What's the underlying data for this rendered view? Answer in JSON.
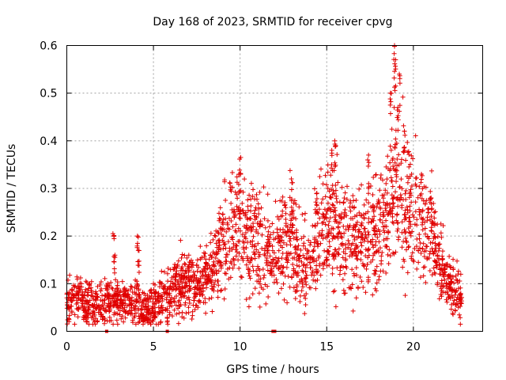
{
  "chart_data": {
    "type": "scatter",
    "title": "Day 168 of 2023, SRMTID for receiver cpvg",
    "xlabel": "GPS time / hours",
    "ylabel": "SRMTID / TECUs",
    "xlim": [
      0,
      24
    ],
    "ylim": [
      0,
      0.6
    ],
    "xticks": [
      "0",
      "5",
      "10",
      "15",
      "20"
    ],
    "yticks": [
      "0",
      "0.1",
      "0.2",
      "0.3",
      "0.4",
      "0.5",
      "0.6"
    ],
    "xtick_values": [
      0,
      5,
      10,
      15,
      20
    ],
    "ytick_values": [
      0,
      0.1,
      0.2,
      0.3,
      0.4,
      0.5,
      0.6
    ],
    "grid": true,
    "marker": "plus",
    "color": "#e00000",
    "trend": [
      [
        0.0,
        0.065
      ],
      [
        0.5,
        0.07
      ],
      [
        1.0,
        0.06
      ],
      [
        1.5,
        0.06
      ],
      [
        2.0,
        0.06
      ],
      [
        2.5,
        0.06
      ],
      [
        3.0,
        0.06
      ],
      [
        3.5,
        0.06
      ],
      [
        4.0,
        0.06
      ],
      [
        4.5,
        0.045
      ],
      [
        5.0,
        0.055
      ],
      [
        5.5,
        0.07
      ],
      [
        6.0,
        0.08
      ],
      [
        6.5,
        0.1
      ],
      [
        7.0,
        0.1
      ],
      [
        7.5,
        0.095
      ],
      [
        8.0,
        0.11
      ],
      [
        8.5,
        0.14
      ],
      [
        9.0,
        0.19
      ],
      [
        9.5,
        0.22
      ],
      [
        10.0,
        0.22
      ],
      [
        10.5,
        0.2
      ],
      [
        11.0,
        0.19
      ],
      [
        11.5,
        0.17
      ],
      [
        12.0,
        0.17
      ],
      [
        12.5,
        0.18
      ],
      [
        13.0,
        0.19
      ],
      [
        13.5,
        0.14
      ],
      [
        14.0,
        0.14
      ],
      [
        14.5,
        0.2
      ],
      [
        15.0,
        0.22
      ],
      [
        15.5,
        0.23
      ],
      [
        16.0,
        0.2
      ],
      [
        16.5,
        0.19
      ],
      [
        17.0,
        0.19
      ],
      [
        17.5,
        0.2
      ],
      [
        18.0,
        0.22
      ],
      [
        18.5,
        0.25
      ],
      [
        19.0,
        0.3
      ],
      [
        19.5,
        0.27
      ],
      [
        20.0,
        0.25
      ],
      [
        20.5,
        0.22
      ],
      [
        21.0,
        0.2
      ],
      [
        21.5,
        0.15
      ],
      [
        22.0,
        0.1
      ],
      [
        22.5,
        0.08
      ],
      [
        22.8,
        0.075
      ]
    ],
    "spikes": [
      [
        2.7,
        0.205
      ],
      [
        2.75,
        0.16
      ],
      [
        4.1,
        0.2
      ],
      [
        4.15,
        0.17
      ],
      [
        10.0,
        0.365
      ],
      [
        9.95,
        0.33
      ],
      [
        12.6,
        0.27
      ],
      [
        13.0,
        0.32
      ],
      [
        14.4,
        0.29
      ],
      [
        15.5,
        0.4
      ],
      [
        15.3,
        0.38
      ],
      [
        17.4,
        0.37
      ],
      [
        18.7,
        0.5
      ],
      [
        18.9,
        0.6
      ],
      [
        18.95,
        0.57
      ],
      [
        19.2,
        0.54
      ],
      [
        19.1,
        0.47
      ],
      [
        19.5,
        0.42
      ],
      [
        20.5,
        0.33
      ],
      [
        21.0,
        0.28
      ]
    ],
    "gap_markers": [
      2.3,
      5.8,
      11.9,
      12.0
    ]
  }
}
